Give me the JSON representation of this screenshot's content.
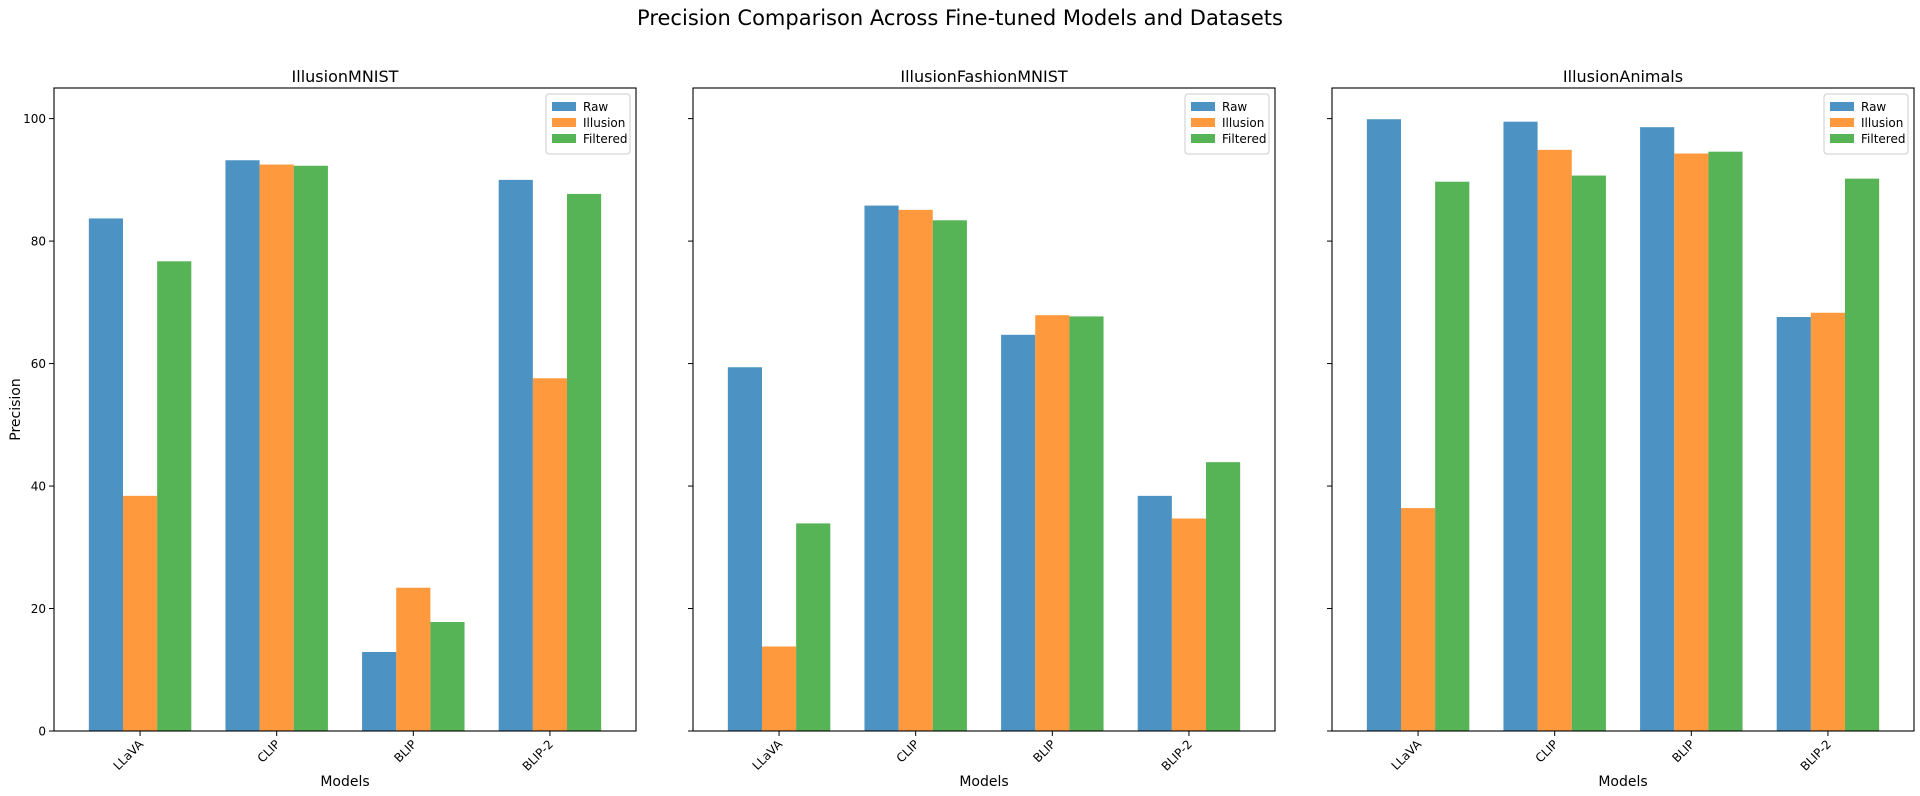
{
  "title": "Precision Comparison Across Fine-tuned Models and Datasets",
  "colors": {
    "Raw": "#1f77b4",
    "Illusion": "#ff7f0e",
    "Filtered": "#2ca02c"
  },
  "chart_data": [
    {
      "type": "bar",
      "title": "IllusionMNIST",
      "xlabel": "Models",
      "ylabel": "Precision",
      "categories": [
        "LLaVA",
        "CLIP",
        "BLIP",
        "BLIP-2"
      ],
      "ylim": [
        0,
        105
      ],
      "yticks": [
        0,
        20,
        40,
        60,
        80,
        100
      ],
      "legend": "top-right",
      "series": [
        {
          "name": "Raw",
          "values": [
            83.7,
            93.2,
            12.9,
            90.0
          ]
        },
        {
          "name": "Illusion",
          "values": [
            38.4,
            92.5,
            23.4,
            57.6
          ]
        },
        {
          "name": "Filtered",
          "values": [
            76.7,
            92.3,
            17.8,
            87.7
          ]
        }
      ]
    },
    {
      "type": "bar",
      "title": "IllusionFashionMNIST",
      "xlabel": "Models",
      "ylabel": "",
      "categories": [
        "LLaVA",
        "CLIP",
        "BLIP",
        "BLIP-2"
      ],
      "ylim": [
        0,
        105
      ],
      "yticks": [
        0,
        20,
        40,
        60,
        80,
        100
      ],
      "legend": "top-right",
      "series": [
        {
          "name": "Raw",
          "values": [
            59.4,
            85.8,
            64.7,
            38.4
          ]
        },
        {
          "name": "Illusion",
          "values": [
            13.8,
            85.1,
            67.9,
            34.7
          ]
        },
        {
          "name": "Filtered",
          "values": [
            33.9,
            83.4,
            67.7,
            43.9
          ]
        }
      ]
    },
    {
      "type": "bar",
      "title": "IllusionAnimals",
      "xlabel": "Models",
      "ylabel": "",
      "categories": [
        "LLaVA",
        "CLIP",
        "BLIP",
        "BLIP-2"
      ],
      "ylim": [
        0,
        105
      ],
      "yticks": [
        0,
        20,
        40,
        60,
        80,
        100
      ],
      "legend": "top-right",
      "series": [
        {
          "name": "Raw",
          "values": [
            99.9,
            99.5,
            98.6,
            67.6
          ]
        },
        {
          "name": "Illusion",
          "values": [
            36.4,
            94.9,
            94.3,
            68.3
          ]
        },
        {
          "name": "Filtered",
          "values": [
            89.7,
            90.7,
            94.6,
            90.2
          ]
        }
      ]
    }
  ]
}
